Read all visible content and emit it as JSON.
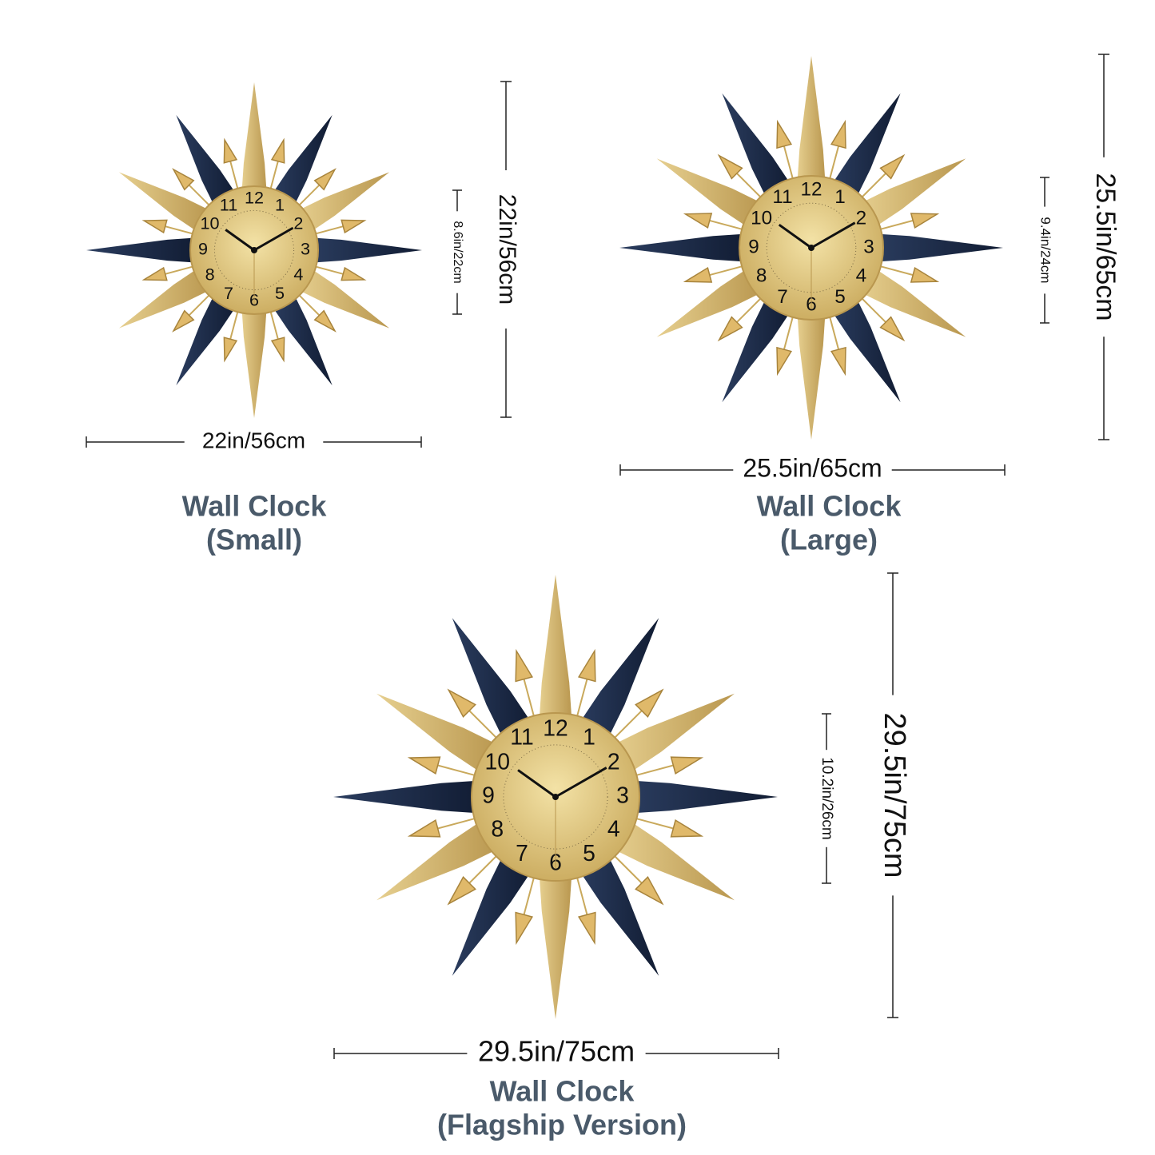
{
  "clocks": [
    {
      "title": "Wall Clock",
      "subtitle": "(Small)",
      "width": "22in/56cm",
      "height": "22in/56cm",
      "dial": "8.6in/22cm"
    },
    {
      "title": "Wall Clock",
      "subtitle": "(Large)",
      "width": "25.5in/65cm",
      "height": "25.5in/65cm",
      "dial": "9.4in/24cm"
    },
    {
      "title": "Wall Clock",
      "subtitle": "(Flagship Version)",
      "width": "29.5in/75cm",
      "height": "29.5in/75cm",
      "dial": "10.2in/26cm"
    }
  ],
  "dial_numerals": [
    "12",
    "1",
    "2",
    "3",
    "4",
    "5",
    "6",
    "7",
    "8",
    "9",
    "10",
    "11"
  ]
}
